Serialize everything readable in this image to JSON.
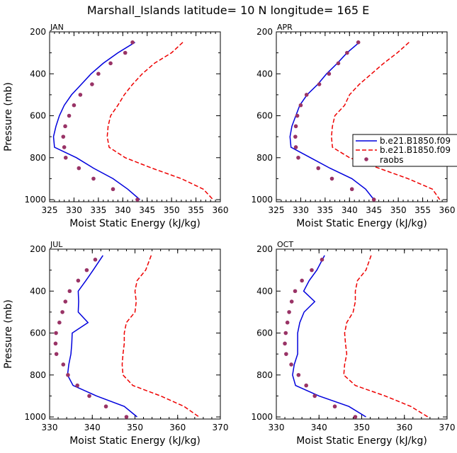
{
  "figure_title": "Marshall_Islands  latitude= 10 N longitude= 165 E",
  "colors": {
    "model1": "#0000dd",
    "model2": "#ee0000",
    "obs": "#993366",
    "axis": "#000000"
  },
  "legend": {
    "entries": [
      "b.e21.B1850.f09",
      "b.e21.B1850.f09",
      "raobs"
    ]
  },
  "chart_data": [
    {
      "type": "line",
      "title": "JAN",
      "xlabel": "Moist Static Energy (kJ/kg)",
      "ylabel": "Pressure (mb)",
      "xlim": [
        325,
        360
      ],
      "ylim": [
        1010,
        200
      ],
      "xticks": [
        325,
        330,
        335,
        340,
        345,
        350,
        355,
        360
      ],
      "yticks": [
        200,
        400,
        600,
        800,
        1000
      ],
      "pressure": [
        250,
        300,
        350,
        400,
        450,
        500,
        550,
        600,
        650,
        700,
        750,
        800,
        850,
        900,
        950,
        1000
      ],
      "series": [
        {
          "name": "b.e21.B1850.f09",
          "style": "solid",
          "values": [
            342.5,
            339.0,
            336.0,
            333.5,
            331.5,
            329.5,
            328.0,
            327.0,
            326.3,
            325.8,
            326.0,
            330.5,
            334.0,
            338.0,
            341.0,
            343.5
          ]
        },
        {
          "name": "b.e21.B1850.f09",
          "style": "dashed",
          "values": [
            352.3,
            350.0,
            346.5,
            344.0,
            342.0,
            340.3,
            339.0,
            337.5,
            337.0,
            336.8,
            337.2,
            340.5,
            346.0,
            352.0,
            356.5,
            358.5
          ]
        },
        {
          "name": "raobs",
          "style": "markers",
          "pressure": [
            250,
            300,
            350,
            400,
            450,
            500,
            550,
            600,
            650,
            700,
            750,
            800,
            850,
            900,
            950,
            1000
          ],
          "values": [
            342.0,
            340.5,
            337.5,
            335.0,
            333.7,
            331.3,
            330.0,
            329.0,
            328.2,
            327.8,
            328.0,
            328.3,
            331.0,
            334.0,
            338.0,
            343.0
          ]
        }
      ]
    },
    {
      "type": "line",
      "title": "APR",
      "xlabel": "Moist Static Energy (kJ/kg)",
      "ylabel": "",
      "xlim": [
        325,
        360
      ],
      "ylim": [
        1010,
        200
      ],
      "xticks": [
        325,
        330,
        335,
        340,
        345,
        350,
        355,
        360
      ],
      "yticks": [
        200,
        400,
        600,
        800,
        1000
      ],
      "pressure": [
        250,
        300,
        350,
        400,
        450,
        500,
        550,
        600,
        650,
        700,
        750,
        800,
        850,
        900,
        950,
        1000
      ],
      "series": [
        {
          "name": "b.e21.B1850.f09",
          "style": "solid",
          "values": [
            342.0,
            339.5,
            337.5,
            335.3,
            333.5,
            331.3,
            329.8,
            329.0,
            328.2,
            327.8,
            328.0,
            332.0,
            336.0,
            340.5,
            343.3,
            345.0
          ]
        },
        {
          "name": "b.e21.B1850.f09",
          "style": "dashed",
          "values": [
            352.2,
            349.8,
            347.0,
            344.5,
            342.0,
            340.0,
            339.0,
            337.0,
            336.5,
            336.3,
            336.5,
            340.0,
            346.0,
            352.0,
            357.0,
            358.5
          ]
        },
        {
          "name": "raobs",
          "style": "markers",
          "pressure": [
            250,
            300,
            350,
            400,
            450,
            500,
            550,
            600,
            650,
            700,
            750,
            800,
            850,
            900,
            950,
            1000
          ],
          "values": [
            341.8,
            339.5,
            337.7,
            335.8,
            333.8,
            331.2,
            330.0,
            329.3,
            329.0,
            328.9,
            329.0,
            329.5,
            333.6,
            336.4,
            340.5,
            345.0
          ]
        }
      ]
    },
    {
      "type": "line",
      "title": "JUL",
      "xlabel": "Moist Static Energy (kJ/kg)",
      "ylabel": "Pressure (mb)",
      "xlim": [
        330,
        370
      ],
      "ylim": [
        1010,
        200
      ],
      "xticks": [
        330,
        340,
        350,
        360,
        370
      ],
      "yticks": [
        200,
        400,
        600,
        800,
        1000
      ],
      "pressure": [
        230,
        300,
        350,
        400,
        450,
        500,
        550,
        600,
        650,
        700,
        750,
        800,
        850,
        900,
        950,
        1000
      ],
      "series": [
        {
          "name": "b.e21.B1850.f09",
          "style": "solid",
          "values": [
            342.5,
            340.2,
            338.5,
            336.7,
            336.8,
            336.7,
            339.0,
            335.3,
            335.2,
            335.0,
            334.5,
            334.2,
            335.5,
            341.0,
            347.5,
            350.5
          ]
        },
        {
          "name": "b.e21.B1850.f09",
          "style": "dashed",
          "values": [
            353.8,
            352.5,
            350.5,
            350.0,
            350.3,
            350.0,
            348.0,
            347.5,
            347.5,
            347.2,
            347.0,
            347.2,
            349.5,
            356.0,
            361.5,
            365.0
          ]
        },
        {
          "name": "raobs",
          "style": "markers",
          "pressure": [
            250,
            300,
            350,
            400,
            450,
            500,
            550,
            600,
            650,
            700,
            750,
            800,
            850,
            900,
            950,
            1000
          ],
          "values": [
            340.7,
            338.7,
            336.7,
            334.7,
            333.7,
            333.0,
            332.3,
            331.5,
            331.4,
            331.6,
            333.2,
            334.3,
            336.5,
            339.3,
            343.2,
            348.0
          ]
        }
      ]
    },
    {
      "type": "line",
      "title": "OCT",
      "xlabel": "Moist Static Energy (kJ/kg)",
      "ylabel": "",
      "xlim": [
        330,
        370
      ],
      "ylim": [
        1010,
        200
      ],
      "xticks": [
        330,
        340,
        350,
        360,
        370
      ],
      "yticks": [
        200,
        400,
        600,
        800,
        1000
      ],
      "pressure": [
        230,
        300,
        350,
        400,
        450,
        500,
        550,
        600,
        650,
        700,
        750,
        800,
        850,
        900,
        950,
        1000
      ],
      "series": [
        {
          "name": "b.e21.B1850.f09",
          "style": "solid",
          "values": [
            341.3,
            339.5,
            337.7,
            336.4,
            339.0,
            336.5,
            335.5,
            335.0,
            335.0,
            335.0,
            334.2,
            333.8,
            334.5,
            340.0,
            347.0,
            351.0
          ]
        },
        {
          "name": "b.e21.B1850.f09",
          "style": "dashed",
          "values": [
            352.2,
            351.0,
            349.0,
            348.5,
            348.5,
            348.0,
            346.5,
            346.0,
            346.2,
            346.5,
            346.0,
            345.8,
            348.5,
            355.5,
            361.5,
            365.5
          ]
        },
        {
          "name": "raobs",
          "style": "markers",
          "pressure": [
            250,
            300,
            350,
            400,
            450,
            500,
            550,
            600,
            650,
            700,
            750,
            800,
            850,
            900,
            950,
            1000
          ],
          "values": [
            340.7,
            338.3,
            336.0,
            334.4,
            333.6,
            333.0,
            332.6,
            332.2,
            332.0,
            332.3,
            333.5,
            335.2,
            337.0,
            339.0,
            343.7,
            348.5
          ]
        }
      ]
    }
  ]
}
